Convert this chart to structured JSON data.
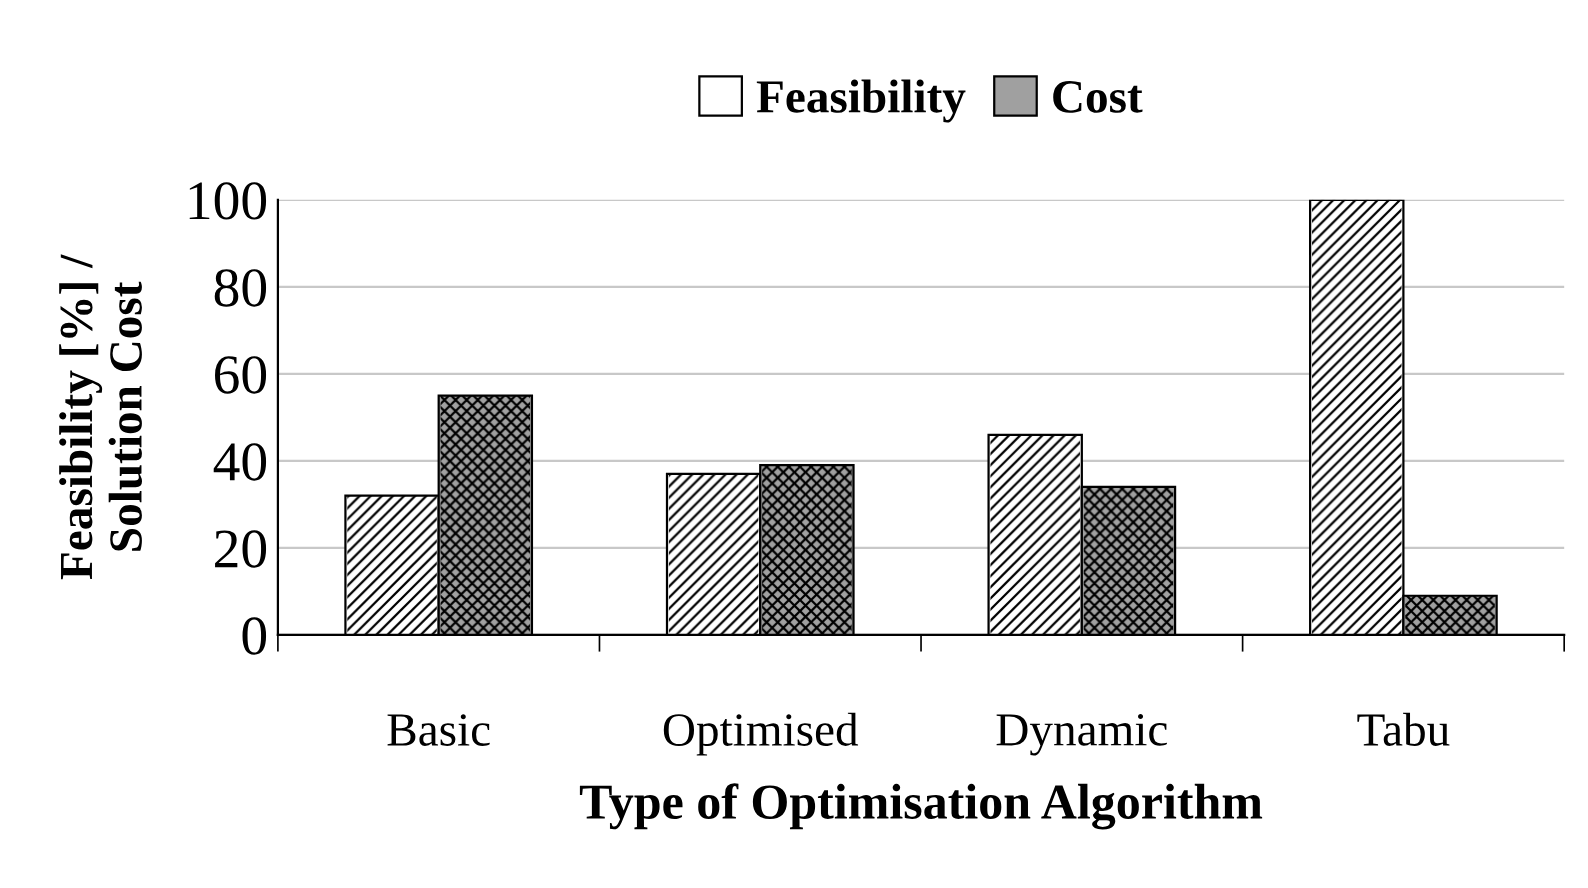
{
  "chart_data": {
    "type": "bar",
    "xlabel": "Type of Optimisation Algorithm",
    "ylabel": "Feasibility [%] /\nSolution Cost",
    "categories": [
      "Basic",
      "Optimised",
      "Dynamic",
      "Tabu"
    ],
    "series": [
      {
        "name": "Feasibility",
        "color": "#ffffff",
        "values": [
          32,
          37,
          46,
          100
        ]
      },
      {
        "name": "Cost",
        "color": "#a0a0a0",
        "values": [
          55,
          39,
          34,
          9
        ]
      }
    ],
    "ylim": [
      0,
      100
    ],
    "yticks": [
      0,
      20,
      40,
      60,
      80,
      100
    ],
    "grid": "y",
    "legend": "top"
  }
}
